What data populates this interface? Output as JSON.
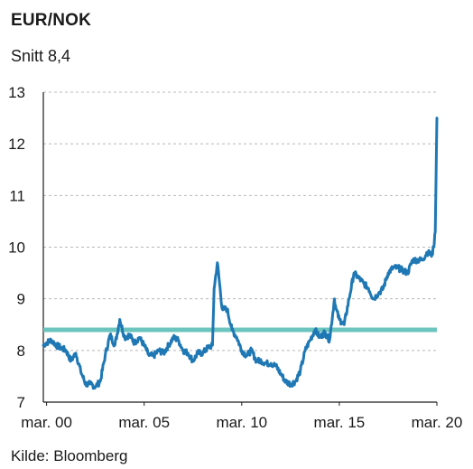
{
  "chart_data": {
    "type": "line",
    "title": "EUR/NOK",
    "subtitle": "Snitt 8,4",
    "source": "Kilde: Bloomberg",
    "xlabel": "",
    "ylabel": "",
    "ylim": [
      7,
      13
    ],
    "xlim": [
      "2000-01",
      "2020-03"
    ],
    "y_ticks": [
      "7",
      "8",
      "9",
      "10",
      "11",
      "12",
      "13"
    ],
    "x_ticks": [
      {
        "label": "mar. 00",
        "date": "2000-03"
      },
      {
        "label": "mar. 05",
        "date": "2005-03"
      },
      {
        "label": "mar. 10",
        "date": "2010-03"
      },
      {
        "label": "mar. 15",
        "date": "2015-03"
      },
      {
        "label": "mar. 20",
        "date": "2020-03"
      }
    ],
    "grid": "horizontal-dashed",
    "average": 8.4,
    "colors": {
      "series": "#1f78b4",
      "average": "#6cc4bf",
      "grid": "#b8b8b8"
    },
    "series": [
      {
        "x": [
          "2000-01",
          "2000-03",
          "2000-06",
          "2000-09",
          "2000-12",
          "2001-03",
          "2001-06",
          "2001-09",
          "2001-12",
          "2002-03",
          "2002-06",
          "2002-09",
          "2002-12",
          "2003-03",
          "2003-06",
          "2003-09",
          "2003-12",
          "2004-03",
          "2004-06",
          "2004-09",
          "2004-12",
          "2005-03",
          "2005-06",
          "2005-09",
          "2005-12",
          "2006-03",
          "2006-06",
          "2006-09",
          "2006-12",
          "2007-03",
          "2007-06",
          "2007-09",
          "2007-12",
          "2008-03",
          "2008-06",
          "2008-09",
          "2008-10",
          "2008-12",
          "2009-03",
          "2009-06",
          "2009-09",
          "2009-12",
          "2010-03",
          "2010-06",
          "2010-09",
          "2010-12",
          "2011-03",
          "2011-06",
          "2011-09",
          "2011-12",
          "2012-03",
          "2012-06",
          "2012-09",
          "2012-12",
          "2013-03",
          "2013-06",
          "2013-09",
          "2013-12",
          "2014-03",
          "2014-06",
          "2014-09",
          "2014-12",
          "2015-01",
          "2015-03",
          "2015-06",
          "2015-09",
          "2015-12",
          "2016-03",
          "2016-06",
          "2016-09",
          "2016-12",
          "2017-03",
          "2017-06",
          "2017-09",
          "2017-12",
          "2018-03",
          "2018-06",
          "2018-09",
          "2018-12",
          "2019-03",
          "2019-06",
          "2019-09",
          "2019-12",
          "2020-01",
          "2020-02",
          "2020-03"
        ],
        "values": [
          8.1,
          8.15,
          8.2,
          8.1,
          8.05,
          8.0,
          7.8,
          7.95,
          7.6,
          7.35,
          7.35,
          7.3,
          7.4,
          7.9,
          8.3,
          8.1,
          8.6,
          8.25,
          8.3,
          8.15,
          8.25,
          8.1,
          7.9,
          7.9,
          8.0,
          7.95,
          8.1,
          8.25,
          8.2,
          8.0,
          7.95,
          7.8,
          7.95,
          7.95,
          8.05,
          8.1,
          9.2,
          9.7,
          8.8,
          8.8,
          8.4,
          8.25,
          8.0,
          7.9,
          8.0,
          7.8,
          7.8,
          7.75,
          7.75,
          7.7,
          7.55,
          7.4,
          7.35,
          7.4,
          7.6,
          8.0,
          8.2,
          8.4,
          8.25,
          8.35,
          8.2,
          9.0,
          8.8,
          8.6,
          8.5,
          9.0,
          9.5,
          9.4,
          9.3,
          9.2,
          9.0,
          9.1,
          9.2,
          9.5,
          9.6,
          9.6,
          9.55,
          9.5,
          9.75,
          9.75,
          9.75,
          9.9,
          9.85,
          10.0,
          10.3,
          12.5
        ]
      }
    ]
  }
}
